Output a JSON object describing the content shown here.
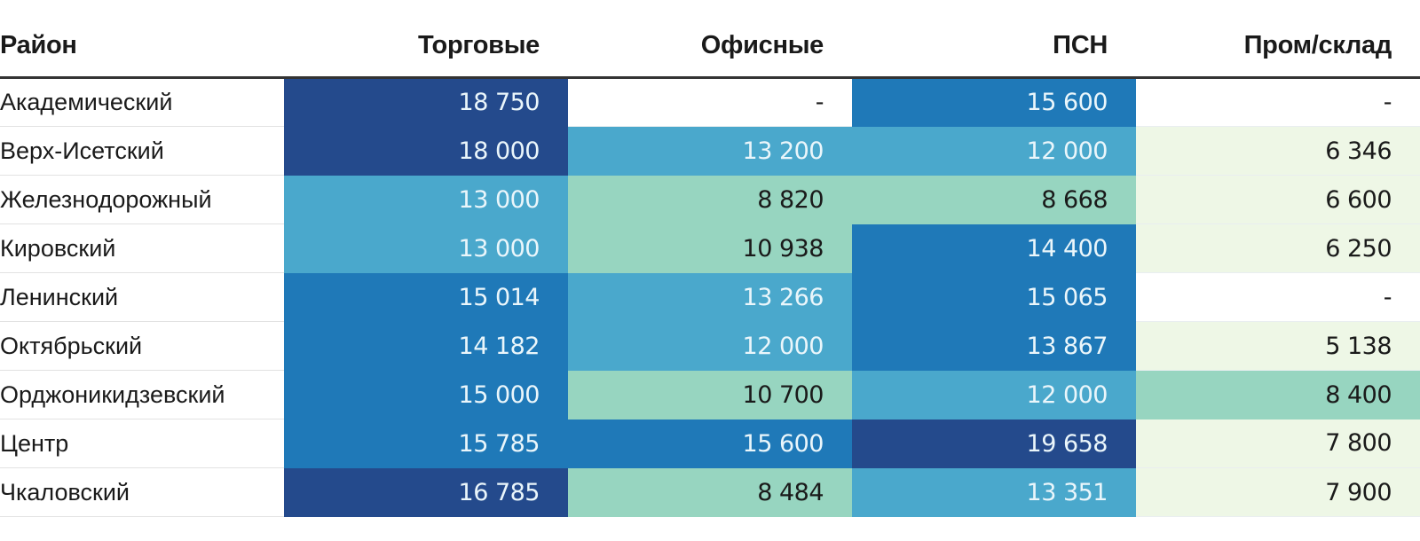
{
  "chart_data": {
    "type": "table",
    "columns": [
      "Район",
      "Торговые",
      "Офисные",
      "ПСН",
      "Пром/склад"
    ],
    "rows": [
      {
        "district": "Академический",
        "values": [
          "18 750",
          "-",
          "15 600",
          "-"
        ]
      },
      {
        "district": "Верх-Исетский",
        "values": [
          "18 000",
          "13 200",
          "12 000",
          "6 346"
        ]
      },
      {
        "district": "Железнодорожный",
        "values": [
          "13 000",
          "8 820",
          "8 668",
          "6 600"
        ]
      },
      {
        "district": "Кировский",
        "values": [
          "13 000",
          "10 938",
          "14 400",
          "6 250"
        ]
      },
      {
        "district": "Ленинский",
        "values": [
          "15 014",
          "13 266",
          "15 065",
          "-"
        ]
      },
      {
        "district": "Октябрьский",
        "values": [
          "14 182",
          "12 000",
          "13 867",
          "5 138"
        ]
      },
      {
        "district": "Орджоникидзевский",
        "values": [
          "15 000",
          "10 700",
          "12 000",
          "8 400"
        ]
      },
      {
        "district": "Центр",
        "values": [
          "15 785",
          "15 600",
          "19 658",
          "7 800"
        ]
      },
      {
        "district": "Чкаловский",
        "values": [
          "16 785",
          "8 484",
          "13 351",
          "7 900"
        ]
      }
    ],
    "color_scale": {
      "bins": [
        {
          "min": 0,
          "max": 8000,
          "color": "#eef7e6",
          "text_color": "#1a1a1a"
        },
        {
          "min": 8000,
          "max": 11000,
          "color": "#97d5c0",
          "text_color": "#1a1a1a"
        },
        {
          "min": 11000,
          "max": 13500,
          "color": "#4aa8cc",
          "text_color": "#eaf6fb"
        },
        {
          "min": 13500,
          "max": 16000,
          "color": "#1f79b8",
          "text_color": "#eaf6fb"
        },
        {
          "min": 16000,
          "max": 99999,
          "color": "#244a8c",
          "text_color": "#eaf6fb"
        }
      ],
      "empty_color": "#ffffff",
      "empty_text_color": "#1a1a1a"
    }
  }
}
